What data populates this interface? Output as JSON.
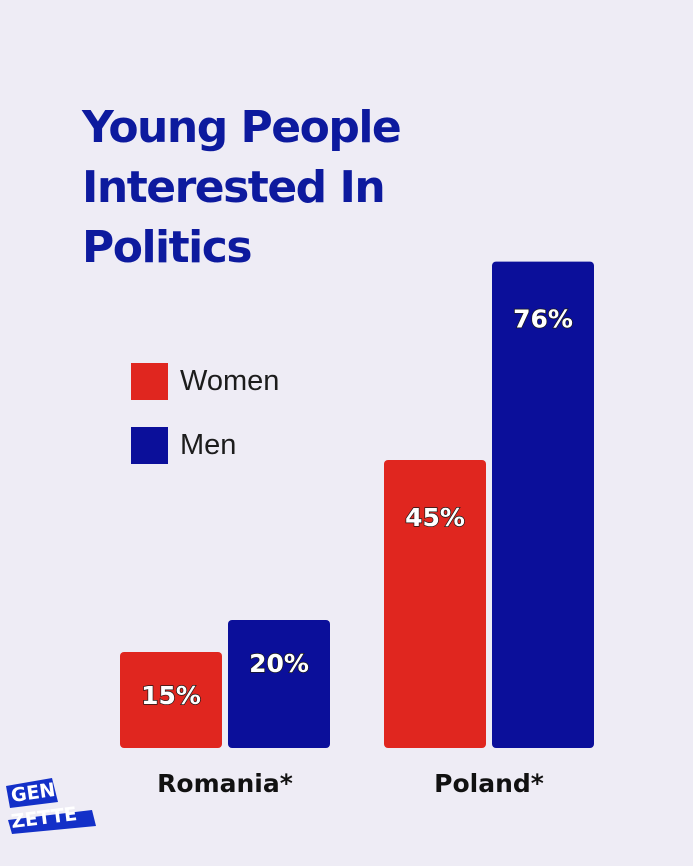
{
  "chart_data": {
    "type": "bar",
    "title": "Young People Interested In Politics",
    "categories": [
      "Romania*",
      "Poland*"
    ],
    "series": [
      {
        "name": "Women",
        "values": [
          15,
          45
        ],
        "color": "#e0261f"
      },
      {
        "name": "Men",
        "values": [
          20,
          76
        ],
        "color": "#0b0f9a"
      }
    ],
    "value_suffix": "%",
    "ylim": [
      0,
      80
    ],
    "grid": false,
    "legend_position": "left"
  },
  "logo": {
    "line1": "GEN",
    "line2": "ZETTE",
    "icon": "genzette-logo"
  }
}
